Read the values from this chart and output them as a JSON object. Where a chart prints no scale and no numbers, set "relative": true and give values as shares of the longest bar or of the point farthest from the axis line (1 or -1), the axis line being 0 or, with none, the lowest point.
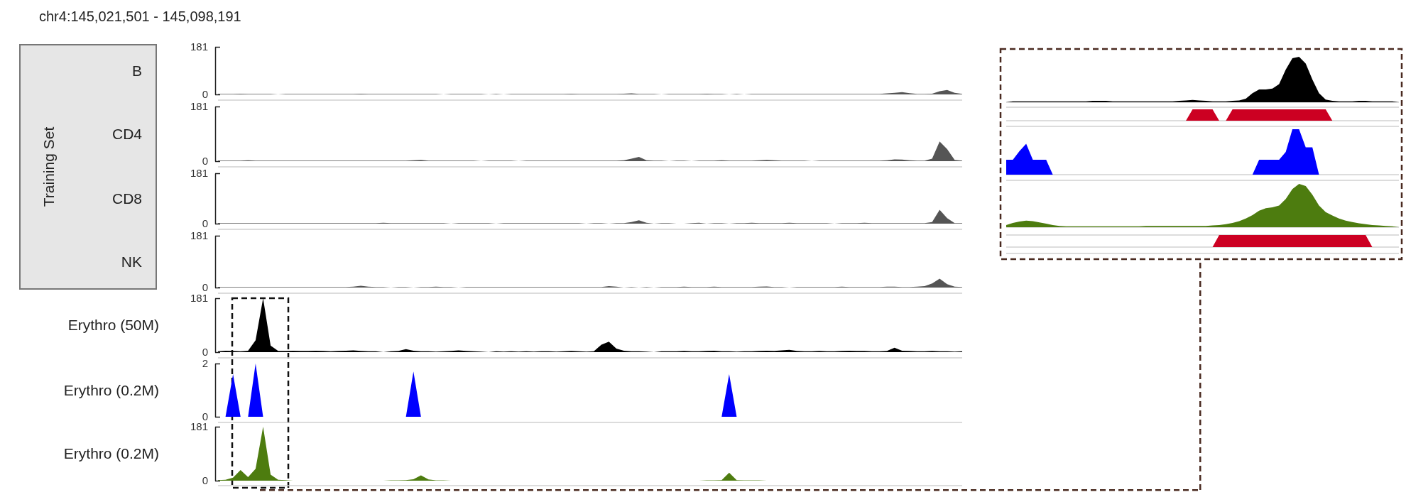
{
  "chart_data": [
    {
      "type": "area",
      "title": "chr4:145,021,501 - 145,098,191",
      "ylabel": "B",
      "annotations": [
        "Training Set"
      ],
      "color": "#555555",
      "ylim": [
        0,
        181
      ],
      "yticks": [
        0,
        181
      ],
      "categories": [
        null,
        null,
        null,
        null,
        null,
        null,
        null,
        null,
        null,
        null,
        null,
        null,
        null,
        null,
        null,
        null,
        null,
        null,
        null,
        null,
        null,
        null,
        null,
        null,
        null,
        null,
        null,
        null,
        null,
        null,
        null,
        null,
        null,
        null,
        null,
        null,
        null,
        null,
        null,
        null,
        null,
        null,
        null,
        null,
        null,
        null,
        null,
        null,
        null,
        null,
        null,
        null,
        null,
        null,
        null,
        null,
        null,
        null,
        null,
        null,
        null,
        null,
        null,
        null,
        null,
        null,
        null,
        null,
        null,
        null,
        null,
        null,
        null,
        null,
        null,
        null,
        null,
        null,
        null,
        null,
        null,
        null,
        null,
        null,
        null,
        null,
        null,
        null,
        null,
        null,
        null,
        null,
        null,
        null,
        null,
        null,
        null,
        null,
        null,
        null
      ],
      "values": [
        2,
        2,
        2,
        3,
        2,
        2,
        2,
        2,
        0,
        2,
        2,
        2,
        2,
        2,
        2,
        2,
        2,
        2,
        2,
        3,
        2,
        2,
        2,
        2,
        2,
        2,
        2,
        2,
        2,
        2,
        0,
        2,
        2,
        2,
        2,
        2,
        0,
        2,
        0,
        2,
        2,
        2,
        2,
        2,
        2,
        2,
        2,
        3,
        2,
        2,
        2,
        2,
        2,
        2,
        3,
        4,
        2,
        2,
        2,
        0,
        2,
        2,
        2,
        2,
        2,
        3,
        2,
        2,
        0,
        2,
        0,
        2,
        2,
        2,
        2,
        2,
        2,
        2,
        2,
        2,
        2,
        2,
        2,
        2,
        2,
        2,
        2,
        2,
        2,
        4,
        6,
        9,
        5,
        2,
        2,
        3,
        12,
        17,
        6,
        2
      ]
    },
    {
      "type": "area",
      "ylabel": "CD4",
      "color": "#555555",
      "ylim": [
        0,
        181
      ],
      "yticks": [
        0,
        181
      ],
      "categories": [
        null,
        null,
        null,
        null,
        null,
        null,
        null,
        null,
        null,
        null,
        null,
        null,
        null,
        null,
        null,
        null,
        null,
        null,
        null,
        null,
        null,
        null,
        null,
        null,
        null,
        null,
        null,
        null,
        null,
        null,
        null,
        null,
        null,
        null,
        null,
        null,
        null,
        null,
        null,
        null,
        null,
        null,
        null,
        null,
        null,
        null,
        null,
        null,
        null,
        null,
        null,
        null,
        null,
        null,
        null,
        null,
        null,
        null,
        null,
        null,
        null,
        null,
        null,
        null,
        null,
        null,
        null,
        null,
        null,
        null,
        null,
        null,
        null,
        null,
        null,
        null,
        null,
        null,
        null,
        null,
        null,
        null,
        null,
        null,
        null,
        null,
        null,
        null,
        null,
        null,
        null,
        null,
        null,
        null,
        null,
        null,
        null,
        null,
        null,
        null
      ],
      "values": [
        2,
        2,
        2,
        2,
        3,
        2,
        2,
        2,
        2,
        2,
        2,
        2,
        2,
        2,
        2,
        2,
        2,
        2,
        2,
        2,
        2,
        2,
        2,
        2,
        2,
        2,
        3,
        4,
        2,
        2,
        2,
        2,
        2,
        2,
        2,
        0,
        2,
        2,
        2,
        2,
        0,
        2,
        2,
        2,
        2,
        2,
        2,
        2,
        2,
        2,
        2,
        2,
        2,
        2,
        3,
        8,
        14,
        3,
        2,
        2,
        0,
        2,
        2,
        0,
        2,
        2,
        2,
        3,
        2,
        2,
        2,
        2,
        3,
        4,
        3,
        2,
        2,
        2,
        2,
        0,
        2,
        2,
        2,
        2,
        2,
        2,
        2,
        2,
        2,
        3,
        6,
        5,
        3,
        2,
        2,
        8,
        65,
        40,
        4,
        2
      ]
    },
    {
      "type": "area",
      "ylabel": "CD8",
      "color": "#555555",
      "ylim": [
        0,
        181
      ],
      "yticks": [
        0,
        181
      ],
      "categories": [
        null,
        null,
        null,
        null,
        null,
        null,
        null,
        null,
        null,
        null,
        null,
        null,
        null,
        null,
        null,
        null,
        null,
        null,
        null,
        null,
        null,
        null,
        null,
        null,
        null,
        null,
        null,
        null,
        null,
        null,
        null,
        null,
        null,
        null,
        null,
        null,
        null,
        null,
        null,
        null,
        null,
        null,
        null,
        null,
        null,
        null,
        null,
        null,
        null,
        null,
        null,
        null,
        null,
        null,
        null,
        null,
        null,
        null,
        null,
        null,
        null,
        null,
        null,
        null,
        null,
        null,
        null,
        null,
        null,
        null,
        null,
        null,
        null,
        null,
        null,
        null,
        null,
        null,
        null,
        null,
        null,
        null,
        null,
        null,
        null,
        null,
        null,
        null,
        null,
        null,
        null,
        null,
        null,
        null,
        null,
        null,
        null,
        null,
        null,
        null
      ],
      "values": [
        2,
        2,
        2,
        2,
        2,
        2,
        2,
        2,
        2,
        2,
        2,
        2,
        2,
        2,
        2,
        2,
        2,
        2,
        2,
        2,
        2,
        2,
        3,
        2,
        2,
        2,
        2,
        2,
        2,
        2,
        2,
        0,
        2,
        2,
        2,
        2,
        2,
        0,
        2,
        2,
        2,
        2,
        2,
        2,
        2,
        2,
        2,
        2,
        2,
        0,
        2,
        2,
        0,
        2,
        2,
        6,
        12,
        3,
        0,
        2,
        2,
        0,
        0,
        2,
        3,
        0,
        2,
        2,
        0,
        2,
        2,
        3,
        2,
        2,
        2,
        2,
        3,
        2,
        2,
        2,
        2,
        2,
        0,
        2,
        2,
        2,
        3,
        2,
        2,
        2,
        2,
        2,
        2,
        2,
        2,
        6,
        50,
        20,
        2,
        2
      ]
    },
    {
      "type": "area",
      "ylabel": "NK",
      "color": "#555555",
      "ylim": [
        0,
        181
      ],
      "yticks": [
        0,
        181
      ],
      "categories": [
        null,
        null,
        null,
        null,
        null,
        null,
        null,
        null,
        null,
        null,
        null,
        null,
        null,
        null,
        null,
        null,
        null,
        null,
        null,
        null,
        null,
        null,
        null,
        null,
        null,
        null,
        null,
        null,
        null,
        null,
        null,
        null,
        null,
        null,
        null,
        null,
        null,
        null,
        null,
        null,
        null,
        null,
        null,
        null,
        null,
        null,
        null,
        null,
        null,
        null,
        null,
        null,
        null,
        null,
        null,
        null,
        null,
        null,
        null,
        null,
        null,
        null,
        null,
        null,
        null,
        null,
        null,
        null,
        null,
        null,
        null,
        null,
        null,
        null,
        null,
        null,
        null,
        null,
        null,
        null,
        null,
        null,
        null,
        null,
        null,
        null,
        null,
        null,
        null,
        null,
        null,
        null,
        null,
        null,
        null,
        null,
        null,
        null,
        null,
        null
      ],
      "values": [
        2,
        2,
        2,
        2,
        2,
        2,
        2,
        2,
        2,
        2,
        2,
        2,
        2,
        2,
        2,
        2,
        2,
        2,
        3,
        6,
        3,
        2,
        2,
        0,
        2,
        2,
        0,
        2,
        2,
        3,
        2,
        2,
        0,
        2,
        2,
        2,
        2,
        2,
        2,
        2,
        2,
        2,
        2,
        2,
        2,
        2,
        2,
        2,
        2,
        2,
        2,
        2,
        5,
        3,
        0,
        2,
        0,
        2,
        0,
        2,
        2,
        2,
        3,
        2,
        2,
        2,
        3,
        2,
        2,
        2,
        2,
        2,
        3,
        4,
        2,
        2,
        0,
        2,
        2,
        2,
        2,
        2,
        2,
        3,
        2,
        2,
        2,
        2,
        2,
        3,
        3,
        2,
        2,
        3,
        5,
        14,
        31,
        12,
        3,
        2
      ]
    },
    {
      "type": "area",
      "ylabel": "Erythro (50M)",
      "color": "#000000",
      "ylim": [
        0,
        181
      ],
      "yticks": [
        0,
        181
      ],
      "categories": [
        null,
        null,
        null,
        null,
        null,
        null,
        null,
        null,
        null,
        null,
        null,
        null,
        null,
        null,
        null,
        null,
        null,
        null,
        null,
        null,
        null,
        null,
        null,
        null,
        null,
        null,
        null,
        null,
        null,
        null,
        null,
        null,
        null,
        null,
        null,
        null,
        null,
        null,
        null,
        null,
        null,
        null,
        null,
        null,
        null,
        null,
        null,
        null,
        null,
        null,
        null,
        null,
        null,
        null,
        null,
        null,
        null,
        null,
        null,
        null,
        null,
        null,
        null,
        null,
        null,
        null,
        null,
        null,
        null,
        null,
        null,
        null,
        null,
        null,
        null,
        null,
        null,
        null,
        null,
        null,
        null,
        null,
        null,
        null,
        null,
        null,
        null,
        null,
        null,
        null,
        null,
        null,
        null,
        null,
        null,
        null,
        null,
        null,
        null,
        null
      ],
      "values": [
        3,
        5,
        4,
        3,
        5,
        40,
        181,
        22,
        4,
        4,
        5,
        4,
        4,
        5,
        4,
        3,
        4,
        5,
        6,
        4,
        3,
        3,
        0,
        3,
        4,
        10,
        5,
        3,
        3,
        2,
        3,
        4,
        6,
        4,
        3,
        2,
        0,
        3,
        2,
        3,
        2,
        3,
        2,
        3,
        3,
        2,
        3,
        4,
        3,
        2,
        3,
        25,
        35,
        12,
        5,
        3,
        3,
        2,
        0,
        3,
        3,
        3,
        4,
        3,
        3,
        4,
        5,
        3,
        3,
        2,
        3,
        3,
        4,
        5,
        4,
        6,
        8,
        4,
        3,
        3,
        4,
        3,
        3,
        4,
        5,
        4,
        4,
        3,
        3,
        4,
        15,
        5,
        4,
        3,
        3,
        4,
        3,
        3,
        2,
        3
      ]
    },
    {
      "type": "area",
      "ylabel": "Erythro (0.2M)",
      "color": "#0000ff",
      "ylim": [
        0,
        2
      ],
      "yticks": [
        0,
        2
      ],
      "categories": [
        null,
        null,
        null,
        null,
        null,
        null,
        null,
        null,
        null,
        null,
        null,
        null,
        null,
        null,
        null,
        null,
        null,
        null,
        null,
        null,
        null,
        null,
        null,
        null,
        null,
        null,
        null,
        null,
        null,
        null,
        null,
        null,
        null,
        null,
        null,
        null,
        null,
        null,
        null,
        null,
        null,
        null,
        null,
        null,
        null,
        null,
        null,
        null,
        null,
        null,
        null,
        null,
        null,
        null,
        null,
        null,
        null,
        null,
        null,
        null,
        null,
        null,
        null,
        null,
        null,
        null,
        null,
        null,
        null,
        null,
        null,
        null,
        null,
        null,
        null,
        null,
        null,
        null,
        null,
        null,
        null,
        null,
        null,
        null,
        null,
        null,
        null,
        null,
        null,
        null,
        null,
        null,
        null,
        null,
        null,
        null,
        null,
        null,
        null,
        null
      ],
      "values": [
        0,
        0,
        1.6,
        0,
        0,
        2,
        0,
        0,
        0,
        0,
        0,
        0,
        0,
        0,
        0,
        0,
        0,
        0,
        0,
        0,
        0,
        0,
        0,
        0,
        0,
        0,
        1.7,
        0,
        0,
        0,
        0,
        0,
        0,
        0,
        0,
        0,
        0,
        0,
        0,
        0,
        0,
        0,
        0,
        0,
        0,
        0,
        0,
        0,
        0,
        0,
        0,
        0,
        0,
        0,
        0,
        0,
        0,
        0,
        0,
        0,
        0,
        0,
        0,
        0,
        0,
        0,
        0,
        0,
        1.6,
        0,
        0,
        0,
        0,
        0,
        0,
        0,
        0,
        0,
        0,
        0,
        0,
        0,
        0,
        0,
        0,
        0,
        0,
        0,
        0,
        0,
        0,
        0,
        0,
        0,
        0,
        0,
        0,
        0,
        0,
        0
      ]
    },
    {
      "type": "area",
      "ylabel": "Erythro (0.2M)",
      "color": "#4d7c0f",
      "ylim": [
        0,
        181
      ],
      "yticks": [
        0,
        181
      ],
      "categories": [
        null,
        null,
        null,
        null,
        null,
        null,
        null,
        null,
        null,
        null,
        null,
        null,
        null,
        null,
        null,
        null,
        null,
        null,
        null,
        null,
        null,
        null,
        null,
        null,
        null,
        null,
        null,
        null,
        null,
        null,
        null,
        null,
        null,
        null,
        null,
        null,
        null,
        null,
        null,
        null,
        null,
        null,
        null,
        null,
        null,
        null,
        null,
        null,
        null,
        null,
        null,
        null,
        null,
        null,
        null,
        null,
        null,
        null,
        null,
        null,
        null,
        null,
        null,
        null,
        null,
        null,
        null,
        null,
        null,
        null,
        null,
        null,
        null,
        null,
        null,
        null,
        null,
        null,
        null,
        null,
        null,
        null,
        null,
        null,
        null,
        null,
        null,
        null,
        null,
        null,
        null,
        null,
        null,
        null,
        null,
        null,
        null,
        null,
        null,
        null
      ],
      "values": [
        2,
        3,
        10,
        36,
        12,
        40,
        181,
        20,
        3,
        2,
        0,
        0,
        0,
        0,
        0,
        0,
        0,
        0,
        0,
        0,
        0,
        0,
        0,
        1,
        1,
        2,
        5,
        18,
        4,
        1,
        1,
        0,
        0,
        0,
        0,
        0,
        0,
        0,
        0,
        0,
        0,
        0,
        0,
        0,
        0,
        0,
        0,
        0,
        0,
        0,
        0,
        0,
        0,
        0,
        0,
        0,
        0,
        0,
        0,
        0,
        0,
        0,
        0,
        0,
        0,
        1,
        1,
        2,
        27,
        2,
        1,
        1,
        1,
        0,
        0,
        0,
        0,
        0,
        0,
        0,
        0,
        0,
        0,
        0,
        0,
        0,
        0,
        0,
        0,
        0,
        0,
        0,
        0,
        0,
        0,
        0,
        0,
        0,
        0,
        0
      ]
    },
    {
      "type": "area",
      "relative": true,
      "color": "#000000",
      "categories": [
        null,
        null,
        null,
        null,
        null,
        null,
        null,
        null,
        null,
        null,
        null,
        null,
        null,
        null,
        null,
        null,
        null,
        null,
        null,
        null,
        null,
        null,
        null,
        null,
        null,
        null,
        null,
        null,
        null,
        null,
        null,
        null,
        null,
        null,
        null,
        null,
        null,
        null,
        null,
        null,
        null,
        null,
        null,
        null,
        null,
        null,
        null,
        null,
        null,
        null,
        null,
        null,
        null,
        null,
        null,
        null,
        null,
        null,
        null,
        null
      ],
      "values": [
        0,
        0.02,
        0.02,
        0.02,
        0.02,
        0.02,
        0.02,
        0.02,
        0.02,
        0.02,
        0.02,
        0.02,
        0.02,
        0.03,
        0.03,
        0.03,
        0.02,
        0.02,
        0.02,
        0.02,
        0.02,
        0.02,
        0.02,
        0.02,
        0.02,
        0.02,
        0.03,
        0.04,
        0.05,
        0.04,
        0.03,
        0.02,
        0.02,
        0.02,
        0.03,
        0.04,
        0.08,
        0.2,
        0.28,
        0.28,
        0.3,
        0.4,
        0.72,
        0.97,
        1,
        0.85,
        0.5,
        0.2,
        0.06,
        0.03,
        0.02,
        0.02,
        0.02,
        0.03,
        0.03,
        0.02,
        0.02,
        0.02,
        0.02,
        0
      ]
    },
    {
      "type": "area",
      "relative": true,
      "color": "#cc0022",
      "categories": [
        null,
        null,
        null,
        null,
        null,
        null,
        null,
        null,
        null,
        null,
        null,
        null,
        null,
        null,
        null,
        null,
        null,
        null,
        null,
        null,
        null,
        null,
        null,
        null,
        null,
        null,
        null,
        null,
        null,
        null,
        null,
        null,
        null,
        null,
        null,
        null,
        null,
        null,
        null,
        null,
        null,
        null,
        null,
        null,
        null,
        null,
        null,
        null,
        null,
        null,
        null,
        null,
        null,
        null,
        null,
        null,
        null,
        null,
        null,
        null
      ],
      "values": [
        0,
        0,
        0,
        0,
        0,
        0,
        0,
        0,
        0,
        0,
        0,
        0,
        0,
        0,
        0,
        0,
        0,
        0,
        0,
        0,
        0,
        0,
        0,
        0,
        0,
        0,
        0,
        0,
        1,
        1,
        1,
        1,
        0,
        0,
        1,
        1,
        1,
        1,
        1,
        1,
        1,
        1,
        1,
        1,
        1,
        1,
        1,
        1,
        1,
        0,
        0,
        0,
        0,
        0,
        0,
        0,
        0,
        0,
        0,
        0
      ]
    },
    {
      "type": "area",
      "relative": true,
      "color": "#0000ff",
      "categories": [
        null,
        null,
        null,
        null,
        null,
        null,
        null,
        null,
        null,
        null,
        null,
        null,
        null,
        null,
        null,
        null,
        null,
        null,
        null,
        null,
        null,
        null,
        null,
        null,
        null,
        null,
        null,
        null,
        null,
        null,
        null,
        null,
        null,
        null,
        null,
        null,
        null,
        null,
        null,
        null,
        null,
        null,
        null,
        null,
        null,
        null,
        null,
        null,
        null,
        null,
        null,
        null,
        null,
        null,
        null,
        null,
        null,
        null,
        null,
        null
      ],
      "values": [
        0.33,
        0.33,
        0.52,
        0.68,
        0.33,
        0.33,
        0.33,
        0,
        0,
        0,
        0,
        0,
        0,
        0,
        0,
        0,
        0,
        0,
        0,
        0,
        0,
        0,
        0,
        0,
        0,
        0,
        0,
        0,
        0,
        0,
        0,
        0,
        0,
        0,
        0,
        0,
        0,
        0,
        0.33,
        0.33,
        0.33,
        0.33,
        0.5,
        1,
        1,
        0.6,
        0.6,
        0,
        0,
        0,
        0,
        0,
        0,
        0,
        0,
        0,
        0,
        0,
        0,
        0
      ]
    },
    {
      "type": "area",
      "relative": true,
      "color": "#4d7c0f",
      "categories": [
        null,
        null,
        null,
        null,
        null,
        null,
        null,
        null,
        null,
        null,
        null,
        null,
        null,
        null,
        null,
        null,
        null,
        null,
        null,
        null,
        null,
        null,
        null,
        null,
        null,
        null,
        null,
        null,
        null,
        null,
        null,
        null,
        null,
        null,
        null,
        null,
        null,
        null,
        null,
        null,
        null,
        null,
        null,
        null,
        null,
        null,
        null,
        null,
        null,
        null,
        null,
        null,
        null,
        null,
        null,
        null,
        null,
        null,
        null,
        null
      ],
      "values": [
        0.05,
        0.1,
        0.13,
        0.15,
        0.14,
        0.11,
        0.08,
        0.05,
        0.03,
        0.02,
        0.02,
        0.02,
        0.02,
        0.02,
        0.02,
        0.02,
        0.02,
        0.02,
        0.02,
        0.02,
        0.02,
        0.03,
        0.03,
        0.03,
        0.03,
        0.03,
        0.03,
        0.03,
        0.03,
        0.03,
        0.03,
        0.04,
        0.05,
        0.07,
        0.1,
        0.14,
        0.2,
        0.28,
        0.38,
        0.44,
        0.46,
        0.5,
        0.65,
        0.88,
        1,
        0.95,
        0.75,
        0.5,
        0.35,
        0.27,
        0.2,
        0.15,
        0.12,
        0.09,
        0.07,
        0.05,
        0.04,
        0.03,
        0.02,
        0
      ]
    },
    {
      "type": "area",
      "relative": true,
      "color": "#cc0022",
      "categories": [
        null,
        null,
        null,
        null,
        null,
        null,
        null,
        null,
        null,
        null,
        null,
        null,
        null,
        null,
        null,
        null,
        null,
        null,
        null,
        null,
        null,
        null,
        null,
        null,
        null,
        null,
        null,
        null,
        null,
        null,
        null,
        null,
        null,
        null,
        null,
        null,
        null,
        null,
        null,
        null,
        null,
        null,
        null,
        null,
        null,
        null,
        null,
        null,
        null,
        null,
        null,
        null,
        null,
        null,
        null,
        null,
        null,
        null,
        null,
        null
      ],
      "values": [
        0,
        0,
        0,
        0,
        0,
        0,
        0,
        0,
        0,
        0,
        0,
        0,
        0,
        0,
        0,
        0,
        0,
        0,
        0,
        0,
        0,
        0,
        0,
        0,
        0,
        0,
        0,
        0,
        0,
        0,
        0,
        0,
        1,
        1,
        1,
        1,
        1,
        1,
        1,
        1,
        1,
        1,
        1,
        1,
        1,
        1,
        1,
        1,
        1,
        1,
        1,
        1,
        1,
        1,
        1,
        0,
        0,
        0,
        0,
        0
      ]
    }
  ]
}
